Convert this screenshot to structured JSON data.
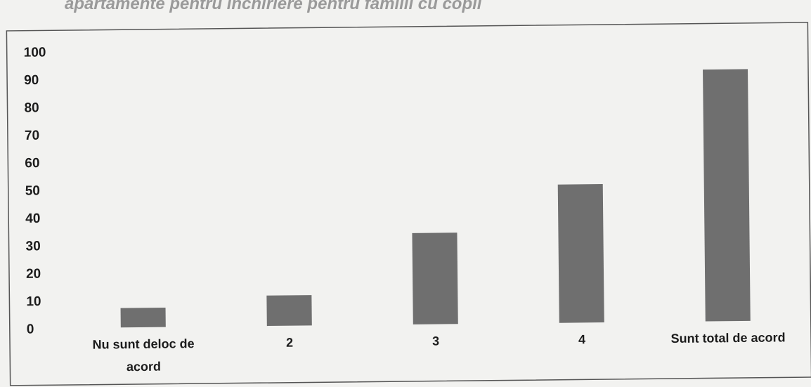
{
  "caption": "apartamente pentru închiriere pentru familii cu copii",
  "colors": {
    "bar": "#6f6f6f",
    "text": "#1c1c1c",
    "frame": "#555555",
    "background": "#f2f2f0"
  },
  "chart_data": {
    "type": "bar",
    "title": "",
    "xlabel": "",
    "ylabel": "",
    "ylim": [
      0,
      100
    ],
    "yticks": [
      0,
      10,
      20,
      30,
      40,
      50,
      60,
      70,
      80,
      90,
      100
    ],
    "grid": false,
    "categories": [
      [
        "Nu sunt deloc de",
        "acord"
      ],
      [
        "2"
      ],
      [
        "3"
      ],
      [
        "4"
      ],
      [
        "Sunt total de acord"
      ]
    ],
    "values": [
      7,
      11,
      33,
      50,
      91
    ]
  }
}
